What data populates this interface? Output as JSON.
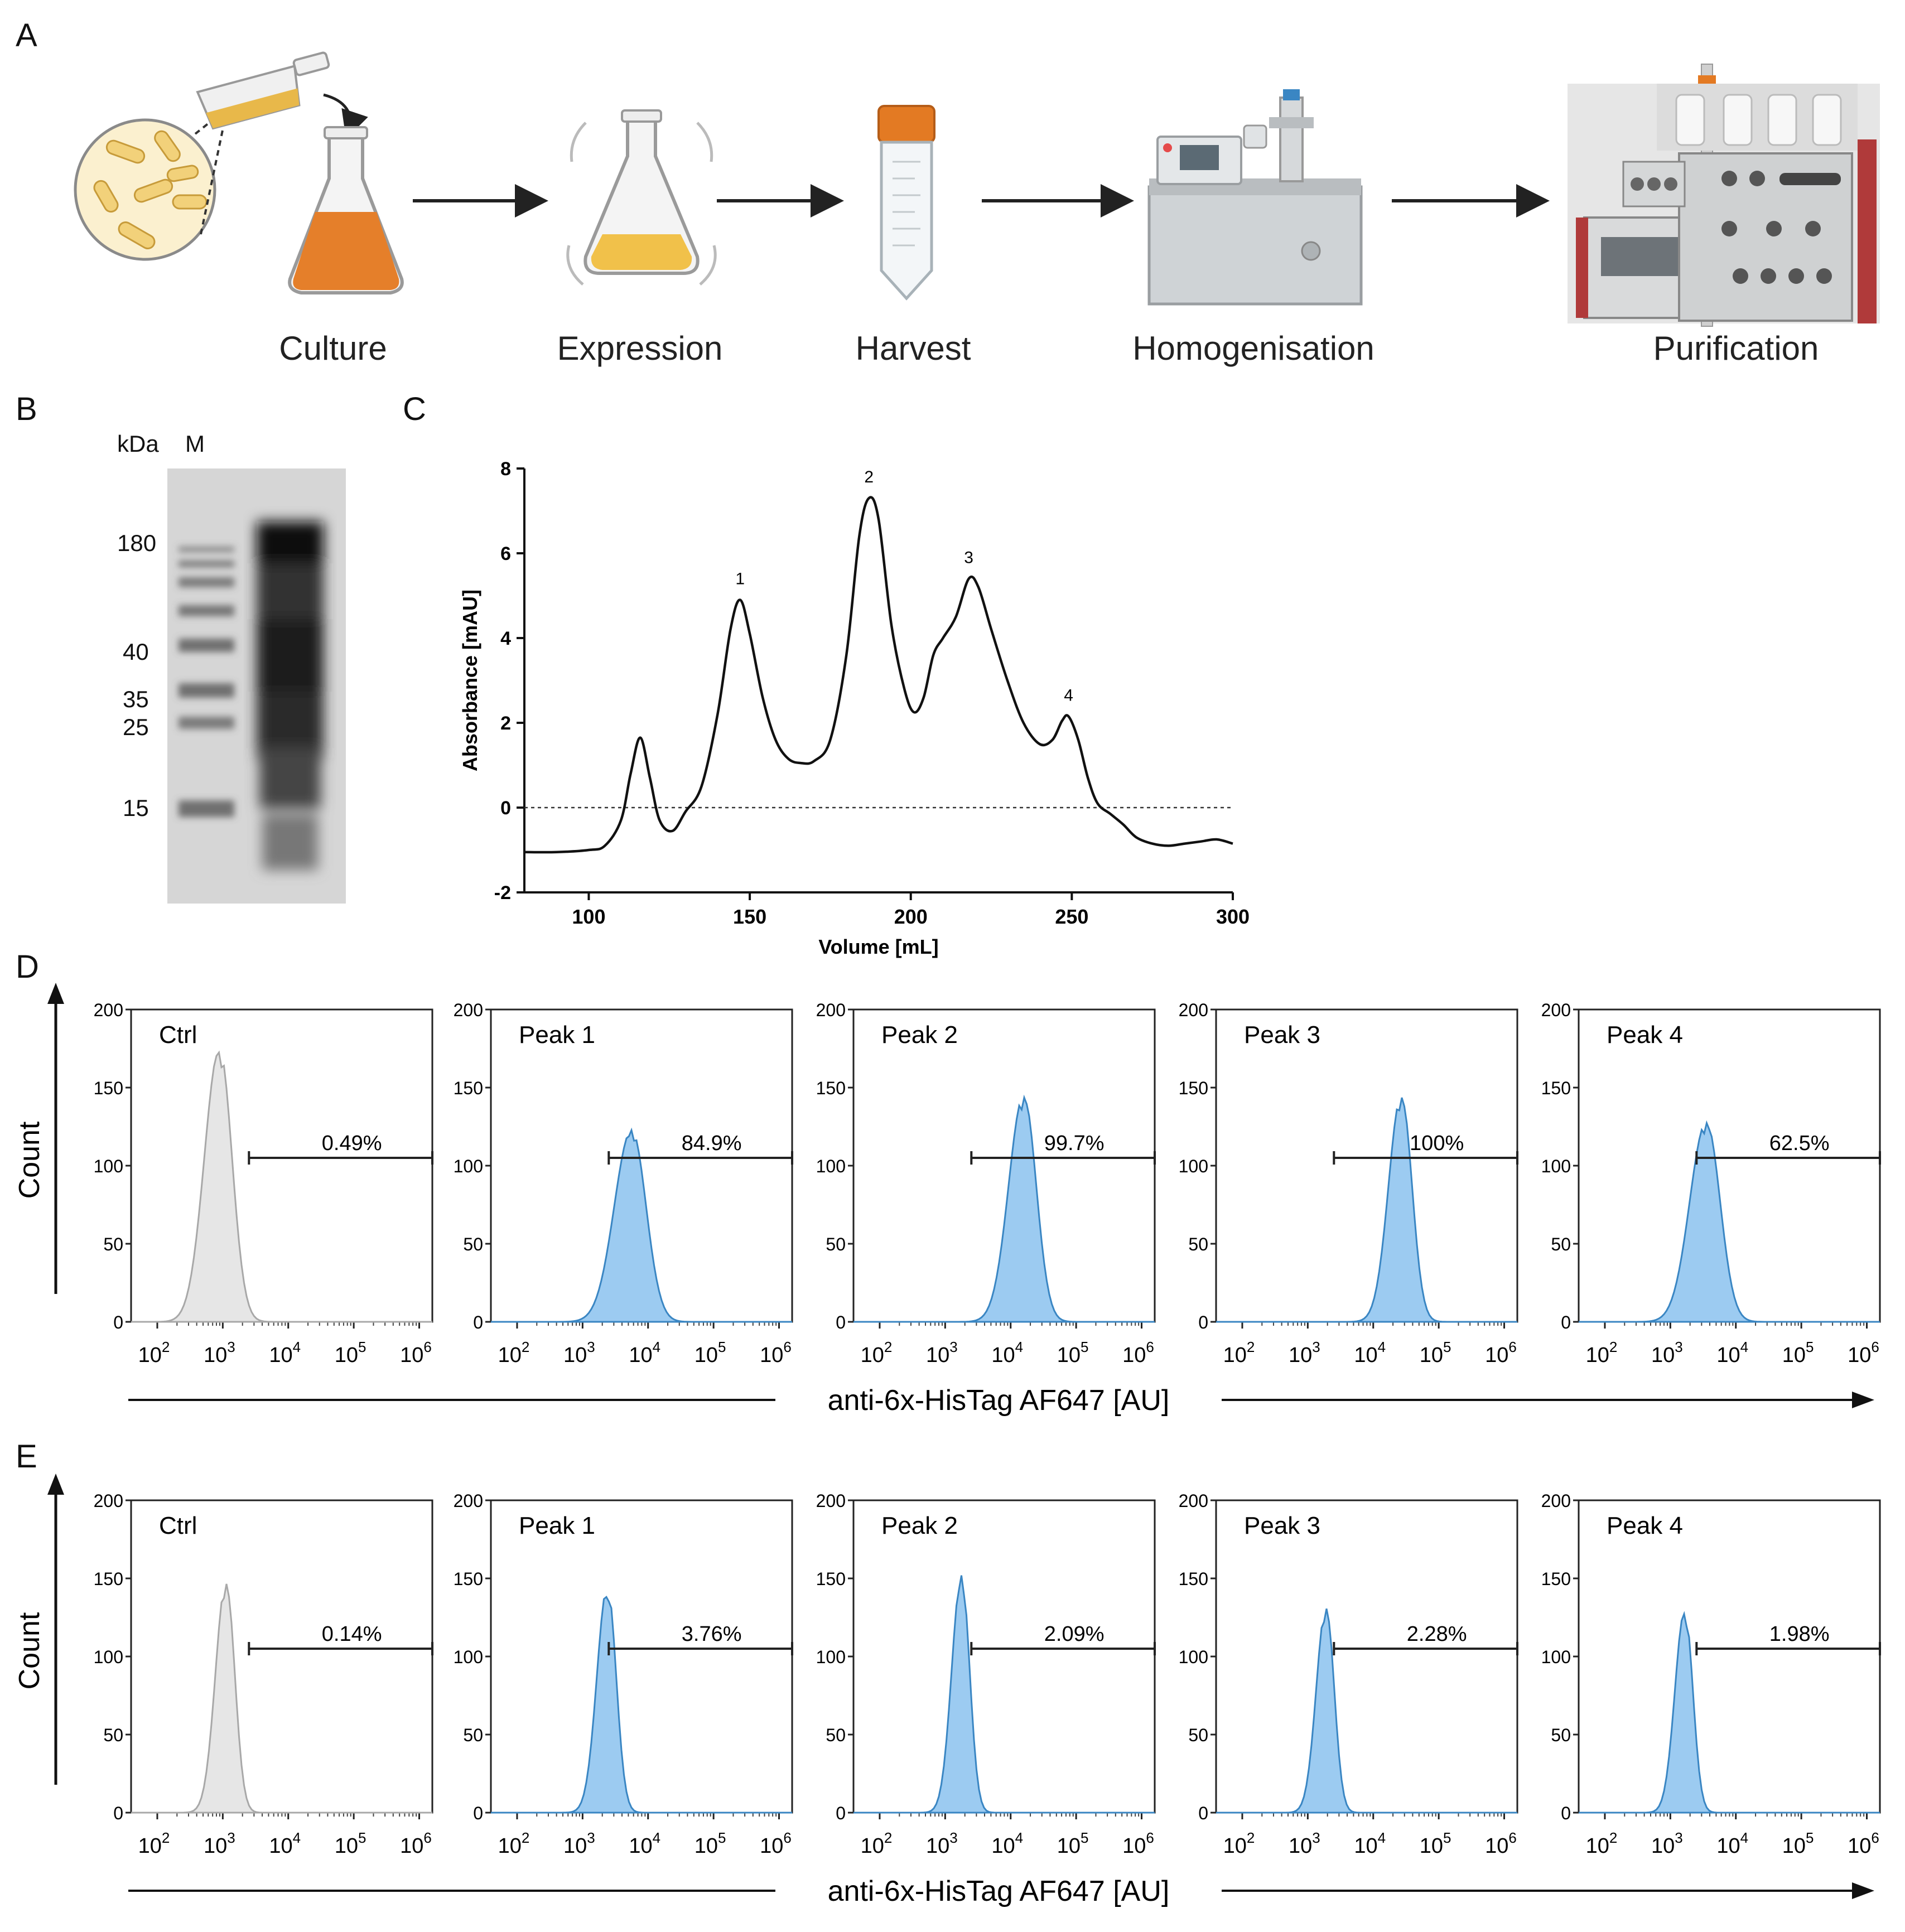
{
  "panel_letters": [
    "A",
    "B",
    "C",
    "D",
    "E"
  ],
  "workflow": {
    "steps": [
      "Culture",
      "Expression",
      "Harvest",
      "Homogenisation",
      "Purification"
    ],
    "icons": [
      "bacteria-culture-flask-icon",
      "shaking-flask-icon",
      "centrifuge-tube-icon",
      "homogeniser-icon",
      "fplc-purifier-icon"
    ],
    "colors": {
      "culture": "#e67e22",
      "expression": "#f1c40f",
      "cap": "#d35400",
      "purifier_red": "#b03a3a"
    }
  },
  "gel": {
    "header_kda": "kDa",
    "header_m": "M",
    "markers": [
      "180",
      "40",
      "35",
      "25",
      "15"
    ]
  },
  "chart_data": [
    {
      "id": "C",
      "type": "line",
      "title": "",
      "xlabel": "Volume [mL]",
      "ylabel": "Absorbance [mAU]",
      "xlim": [
        80,
        300
      ],
      "ylim": [
        -2,
        8
      ],
      "xticks": [
        100,
        150,
        200,
        250,
        300
      ],
      "yticks": [
        -2,
        0,
        2,
        4,
        6,
        8
      ],
      "x": [
        80,
        90,
        100,
        105,
        110,
        113,
        116,
        119,
        122,
        126,
        130,
        135,
        140,
        144,
        147,
        150,
        154,
        158,
        162,
        166,
        170,
        175,
        180,
        184,
        187,
        190,
        194,
        198,
        201,
        204,
        207,
        210,
        214,
        218,
        221,
        225,
        230,
        235,
        240,
        244,
        247,
        249,
        252,
        255,
        258,
        262,
        266,
        270,
        275,
        280,
        285,
        290,
        295,
        300
      ],
      "y": [
        -1.05,
        -1.05,
        -1.0,
        -0.9,
        -0.3,
        0.8,
        1.65,
        0.7,
        -0.3,
        -0.55,
        -0.1,
        0.5,
        2.2,
        4.2,
        4.9,
        4.1,
        2.6,
        1.6,
        1.15,
        1.05,
        1.1,
        1.6,
        3.6,
        6.4,
        7.3,
        6.8,
        4.3,
        2.8,
        2.25,
        2.6,
        3.6,
        4.0,
        4.5,
        5.4,
        5.2,
        4.2,
        3.0,
        2.0,
        1.5,
        1.6,
        2.05,
        2.15,
        1.6,
        0.7,
        0.1,
        -0.15,
        -0.4,
        -0.7,
        -0.85,
        -0.9,
        -0.85,
        -0.8,
        -0.75,
        -0.85
      ],
      "peak_labels": [
        {
          "text": "1",
          "x": 147,
          "y": 4.9
        },
        {
          "text": "2",
          "x": 187,
          "y": 7.3
        },
        {
          "text": "3",
          "x": 218,
          "y": 5.4
        },
        {
          "text": "4",
          "x": 249,
          "y": 2.15
        }
      ],
      "baseline": 0,
      "line_color": "#111111"
    },
    {
      "id": "D",
      "type": "histogram",
      "xlabel": "anti-6x-HisTag AF647 [AU]",
      "ylabel": "Count",
      "x_scale": "log",
      "xlim_log10": [
        1.6,
        6.2
      ],
      "ylim": [
        0,
        200
      ],
      "yticks": [
        0,
        50,
        100,
        150,
        200
      ],
      "xticks_exp": [
        2,
        3,
        4,
        5,
        6
      ],
      "gate_start_log10": 3.4,
      "panels": [
        {
          "name": "Ctrl",
          "gate_label": "0.49%",
          "center_log10": 2.95,
          "width": 0.2,
          "peak": 175,
          "color": "#e6e6e6",
          "edge": "#a8a8a8"
        },
        {
          "name": "Peak 1",
          "gate_label": "84.9%",
          "center_log10": 3.75,
          "width": 0.23,
          "peak": 123,
          "color": "#9ccbf1",
          "edge": "#3a86c3"
        },
        {
          "name": "Peak 2",
          "gate_label": "99.7%",
          "center_log10": 4.2,
          "width": 0.2,
          "peak": 145,
          "color": "#9ccbf1",
          "edge": "#3a86c3"
        },
        {
          "name": "Peak 3",
          "gate_label": "100%",
          "center_log10": 4.43,
          "width": 0.17,
          "peak": 145,
          "color": "#9ccbf1",
          "edge": "#3a86c3"
        },
        {
          "name": "Peak 4",
          "gate_label": "62.5%",
          "center_log10": 3.55,
          "width": 0.22,
          "peak": 128,
          "color": "#9ccbf1",
          "edge": "#3a86c3"
        }
      ]
    },
    {
      "id": "E",
      "type": "histogram",
      "xlabel": "anti-6x-HisTag AF647 [AU]",
      "ylabel": "Count",
      "x_scale": "log",
      "xlim_log10": [
        1.6,
        6.2
      ],
      "ylim": [
        0,
        200
      ],
      "yticks": [
        0,
        50,
        100,
        150,
        200
      ],
      "xticks_exp": [
        2,
        3,
        4,
        5,
        6
      ],
      "gate_start_log10": 3.4,
      "panels": [
        {
          "name": "Ctrl",
          "gate_label": "0.14%",
          "center_log10": 3.05,
          "width": 0.14,
          "peak": 148,
          "color": "#e6e6e6",
          "edge": "#a8a8a8"
        },
        {
          "name": "Peak 1",
          "gate_label": "3.76%",
          "center_log10": 3.38,
          "width": 0.14,
          "peak": 145,
          "color": "#9ccbf1",
          "edge": "#3a86c3"
        },
        {
          "name": "Peak 2",
          "gate_label": "2.09%",
          "center_log10": 3.25,
          "width": 0.13,
          "peak": 152,
          "color": "#9ccbf1",
          "edge": "#3a86c3"
        },
        {
          "name": "Peak 3",
          "gate_label": "2.28%",
          "center_log10": 3.28,
          "width": 0.13,
          "peak": 132,
          "color": "#9ccbf1",
          "edge": "#3a86c3"
        },
        {
          "name": "Peak 4",
          "gate_label": "1.98%",
          "center_log10": 3.22,
          "width": 0.13,
          "peak": 130,
          "color": "#9ccbf1",
          "edge": "#3a86c3"
        }
      ]
    }
  ]
}
